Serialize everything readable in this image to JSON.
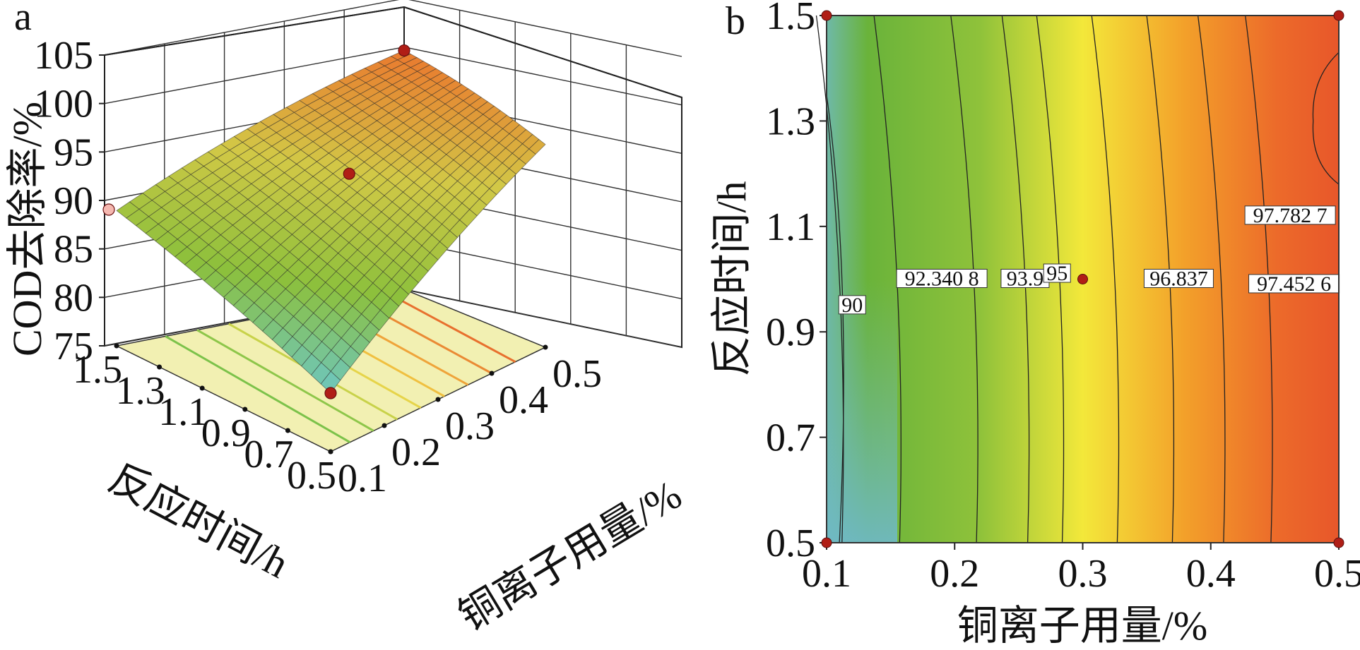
{
  "colors": {
    "low": "#6fb9a8",
    "mid_green": "#6ab33a",
    "yellow": "#f3e83a",
    "orange": "#f08a2a",
    "high": "#e8572a",
    "point": "#b01e16",
    "base_plane": "#f2f0b2"
  },
  "chart_data": [
    {
      "panel": "a",
      "type": "surface3d",
      "title": "",
      "zlabel": "COD去除率/%",
      "xlabel": "铜离子用量/%",
      "ylabel": "反应时间/h",
      "z_ticks": [
        "105",
        "100",
        "95",
        "90",
        "85",
        "80",
        "75"
      ],
      "z_range": [
        75,
        105
      ],
      "x_ticks": [
        "0.1",
        "0.2",
        "0.3",
        "0.4",
        "0.5"
      ],
      "x_range": [
        0.1,
        0.5
      ],
      "y_ticks": [
        "1.5",
        "1.3",
        "1.1",
        "0.9",
        "0.7",
        "0.5"
      ],
      "y_range": [
        0.5,
        1.5
      ],
      "corner_values": [
        {
          "x": 0.1,
          "y": 0.5,
          "z": 81.5
        },
        {
          "x": 0.1,
          "y": 1.5,
          "z": 90.0
        },
        {
          "x": 0.5,
          "y": 1.5,
          "z": 101.5
        },
        {
          "x": 0.5,
          "y": 0.5,
          "z": 97.5
        }
      ],
      "design_points": [
        {
          "x": 0.3,
          "y": 1.0,
          "z": 95.5
        },
        {
          "x": 0.5,
          "y": 1.5,
          "z": 101.5
        },
        {
          "x": 0.1,
          "y": 0.5,
          "z": 81.5
        },
        {
          "x": 0.1,
          "y": 1.5,
          "z": 90.0
        }
      ],
      "grid": true
    },
    {
      "panel": "b",
      "type": "contour",
      "title": "",
      "xlabel": "铜离子用量/%",
      "ylabel": "反应时间/h",
      "x_ticks": [
        "0.1",
        "0.2",
        "0.3",
        "0.4",
        "0.5"
      ],
      "xlim": [
        0.1,
        0.5
      ],
      "y_ticks": [
        "1.5",
        "1.3",
        "1.1",
        "0.9",
        "0.7",
        "0.5"
      ],
      "ylim": [
        0.5,
        1.5
      ],
      "contour_levels": [
        90,
        91.2,
        92.3408,
        93.2,
        93.9,
        95,
        96.837,
        97.4526,
        97.7827
      ],
      "contour_labels": [
        {
          "text": "90",
          "x": 0.12,
          "y": 0.95
        },
        {
          "text": "92.340 8",
          "x": 0.19,
          "y": 1.0
        },
        {
          "text": "93.9",
          "x": 0.255,
          "y": 1.0
        },
        {
          "text": "95",
          "x": 0.28,
          "y": 1.01
        },
        {
          "text": "96.837",
          "x": 0.375,
          "y": 1.0
        },
        {
          "text": "97.452 6",
          "x": 0.465,
          "y": 0.99
        },
        {
          "text": "97.782 7",
          "x": 0.462,
          "y": 1.12
        }
      ],
      "design_points": [
        {
          "x": 0.1,
          "y": 1.5
        },
        {
          "x": 0.5,
          "y": 1.5
        },
        {
          "x": 0.1,
          "y": 0.5
        },
        {
          "x": 0.5,
          "y": 0.5
        },
        {
          "x": 0.3,
          "y": 1.0
        }
      ]
    }
  ]
}
